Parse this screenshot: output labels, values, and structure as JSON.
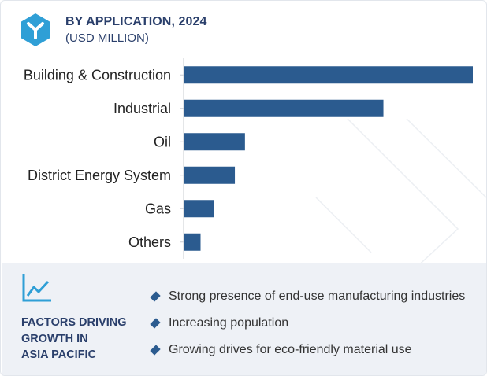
{
  "header": {
    "title": "BY APPLICATION, 2024",
    "subtitle": "(USD MILLION)",
    "icon": "hexagon-logo-icon"
  },
  "colors": {
    "bar": "#2b5b8f",
    "title": "#2a3f6b",
    "panel": "#eef1f6"
  },
  "chart_data": {
    "type": "bar",
    "orientation": "horizontal",
    "title": "BY APPLICATION, 2024",
    "unit": "(USD MILLION)",
    "categories": [
      "Building & Construction",
      "Industrial",
      "Oil",
      "District Energy System",
      "Gas",
      "Others"
    ],
    "values": [
      100,
      69,
      21,
      17.5,
      10.3,
      5.6
    ],
    "value_scale": "relative (no axis values printed)",
    "grid": false,
    "legend": "none"
  },
  "factors": {
    "icon": "trend-line-icon",
    "title_lines": [
      "FACTORS DRIVING",
      "GROWTH IN",
      "ASIA PACIFIC"
    ],
    "items": [
      "Strong presence of end-use manufacturing industries",
      "Increasing population",
      "Growing drives for eco-friendly material use"
    ]
  }
}
